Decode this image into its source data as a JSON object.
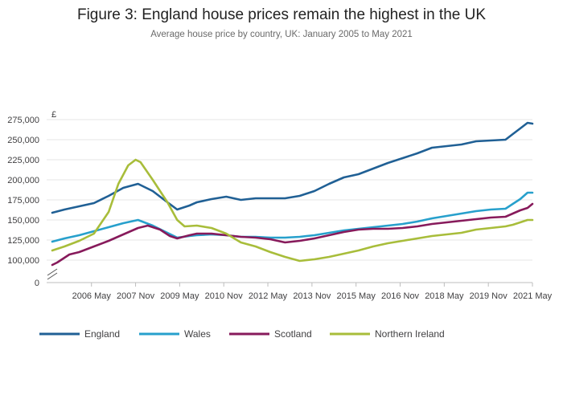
{
  "chart_data": {
    "type": "line",
    "title": "Figure 3: England house prices remain the highest in the UK",
    "subtitle": "Average house price by country, UK: January 2005 to May 2021",
    "y_unit": "£",
    "ylim": [
      0,
      275000
    ],
    "y_axis_break": [
      0,
      90000
    ],
    "y_ticks": [
      0,
      100000,
      125000,
      150000,
      175000,
      200000,
      225000,
      250000,
      275000
    ],
    "y_tick_labels": [
      "0",
      "100,000",
      "125,000",
      "150,000",
      "175,000",
      "200,000",
      "225,000",
      "250,000",
      "275,000"
    ],
    "x_range": [
      "2005-01",
      "2021-05"
    ],
    "x_ticks": [
      "2006-05",
      "2007-11",
      "2009-05",
      "2010-11",
      "2012-05",
      "2013-11",
      "2015-05",
      "2016-11",
      "2018-05",
      "2019-11",
      "2021-05"
    ],
    "x_tick_labels": [
      "2006 May",
      "2007 Nov",
      "2009 May",
      "2010 Nov",
      "2012 May",
      "2013 Nov",
      "2015 May",
      "2016 Nov",
      "2018 May",
      "2019 Nov",
      "2021 May"
    ],
    "grid": "horizontal",
    "legend_position": "bottom",
    "series": [
      {
        "name": "England",
        "color": "#206095",
        "points": [
          [
            "2005-01",
            159000
          ],
          [
            "2005-06",
            163000
          ],
          [
            "2005-12",
            167000
          ],
          [
            "2006-06",
            171000
          ],
          [
            "2006-12",
            180000
          ],
          [
            "2007-06",
            190000
          ],
          [
            "2007-12",
            195000
          ],
          [
            "2008-06",
            186000
          ],
          [
            "2008-12",
            172000
          ],
          [
            "2009-04",
            163000
          ],
          [
            "2009-09",
            168000
          ],
          [
            "2009-12",
            172000
          ],
          [
            "2010-06",
            176000
          ],
          [
            "2010-12",
            179000
          ],
          [
            "2011-06",
            175000
          ],
          [
            "2011-12",
            177000
          ],
          [
            "2012-06",
            177000
          ],
          [
            "2012-12",
            177000
          ],
          [
            "2013-06",
            180000
          ],
          [
            "2013-12",
            186000
          ],
          [
            "2014-06",
            195000
          ],
          [
            "2014-12",
            203000
          ],
          [
            "2015-06",
            207000
          ],
          [
            "2015-12",
            214000
          ],
          [
            "2016-06",
            221000
          ],
          [
            "2016-12",
            227000
          ],
          [
            "2017-06",
            233000
          ],
          [
            "2017-12",
            240000
          ],
          [
            "2018-06",
            242000
          ],
          [
            "2018-12",
            244000
          ],
          [
            "2019-06",
            248000
          ],
          [
            "2019-12",
            249000
          ],
          [
            "2020-06",
            250000
          ],
          [
            "2020-09",
            257000
          ],
          [
            "2020-12",
            264000
          ],
          [
            "2021-03",
            271000
          ],
          [
            "2021-05",
            270000
          ]
        ]
      },
      {
        "name": "Wales",
        "color": "#27a0cc",
        "points": [
          [
            "2005-01",
            123000
          ],
          [
            "2005-06",
            127000
          ],
          [
            "2005-12",
            131000
          ],
          [
            "2006-06",
            136000
          ],
          [
            "2006-12",
            141000
          ],
          [
            "2007-06",
            146000
          ],
          [
            "2007-12",
            150000
          ],
          [
            "2008-06",
            143000
          ],
          [
            "2008-12",
            134000
          ],
          [
            "2009-04",
            128000
          ],
          [
            "2009-09",
            130000
          ],
          [
            "2009-12",
            131000
          ],
          [
            "2010-06",
            132000
          ],
          [
            "2010-12",
            131000
          ],
          [
            "2011-06",
            129000
          ],
          [
            "2011-12",
            129000
          ],
          [
            "2012-06",
            128000
          ],
          [
            "2012-12",
            128000
          ],
          [
            "2013-06",
            129000
          ],
          [
            "2013-12",
            131000
          ],
          [
            "2014-06",
            134000
          ],
          [
            "2014-12",
            137000
          ],
          [
            "2015-06",
            139000
          ],
          [
            "2015-12",
            141000
          ],
          [
            "2016-06",
            143000
          ],
          [
            "2016-12",
            145000
          ],
          [
            "2017-06",
            148000
          ],
          [
            "2017-12",
            152000
          ],
          [
            "2018-06",
            155000
          ],
          [
            "2018-12",
            158000
          ],
          [
            "2019-06",
            161000
          ],
          [
            "2019-12",
            163000
          ],
          [
            "2020-06",
            164000
          ],
          [
            "2020-09",
            170000
          ],
          [
            "2020-12",
            176000
          ],
          [
            "2021-03",
            184000
          ],
          [
            "2021-05",
            184000
          ]
        ]
      },
      {
        "name": "Scotland",
        "color": "#871a5b",
        "points": [
          [
            "2005-01",
            94000
          ],
          [
            "2005-03",
            97000
          ],
          [
            "2005-08",
            107000
          ],
          [
            "2005-12",
            110000
          ],
          [
            "2006-06",
            117000
          ],
          [
            "2006-12",
            124000
          ],
          [
            "2007-06",
            132000
          ],
          [
            "2007-12",
            140000
          ],
          [
            "2008-04",
            143000
          ],
          [
            "2008-09",
            138000
          ],
          [
            "2009-01",
            130000
          ],
          [
            "2009-04",
            127000
          ],
          [
            "2009-09",
            131000
          ],
          [
            "2009-12",
            133000
          ],
          [
            "2010-06",
            133000
          ],
          [
            "2010-12",
            131000
          ],
          [
            "2011-06",
            129000
          ],
          [
            "2011-12",
            128000
          ],
          [
            "2012-06",
            126000
          ],
          [
            "2012-12",
            122000
          ],
          [
            "2013-06",
            124000
          ],
          [
            "2013-12",
            127000
          ],
          [
            "2014-06",
            131000
          ],
          [
            "2014-12",
            135000
          ],
          [
            "2015-06",
            138000
          ],
          [
            "2015-12",
            139000
          ],
          [
            "2016-06",
            139000
          ],
          [
            "2016-12",
            140000
          ],
          [
            "2017-06",
            142000
          ],
          [
            "2017-12",
            145000
          ],
          [
            "2018-06",
            147000
          ],
          [
            "2018-12",
            149000
          ],
          [
            "2019-06",
            151000
          ],
          [
            "2019-12",
            153000
          ],
          [
            "2020-06",
            154000
          ],
          [
            "2020-09",
            158000
          ],
          [
            "2020-12",
            162000
          ],
          [
            "2021-03",
            165000
          ],
          [
            "2021-05",
            170000
          ]
        ]
      },
      {
        "name": "Northern Ireland",
        "color": "#a8bd3a",
        "points": [
          [
            "2005-01",
            112000
          ],
          [
            "2005-06",
            117000
          ],
          [
            "2005-12",
            124000
          ],
          [
            "2006-06",
            133000
          ],
          [
            "2006-12",
            160000
          ],
          [
            "2007-04",
            195000
          ],
          [
            "2007-08",
            218000
          ],
          [
            "2007-11",
            225000
          ],
          [
            "2008-01",
            222000
          ],
          [
            "2008-06",
            200000
          ],
          [
            "2008-12",
            172000
          ],
          [
            "2009-04",
            150000
          ],
          [
            "2009-07",
            142000
          ],
          [
            "2009-12",
            143000
          ],
          [
            "2010-06",
            140000
          ],
          [
            "2010-12",
            133000
          ],
          [
            "2011-06",
            122000
          ],
          [
            "2011-12",
            117000
          ],
          [
            "2012-06",
            110000
          ],
          [
            "2012-12",
            104000
          ],
          [
            "2013-06",
            99000
          ],
          [
            "2013-12",
            101000
          ],
          [
            "2014-06",
            104000
          ],
          [
            "2014-12",
            108000
          ],
          [
            "2015-06",
            112000
          ],
          [
            "2015-12",
            117000
          ],
          [
            "2016-06",
            121000
          ],
          [
            "2016-12",
            124000
          ],
          [
            "2017-06",
            127000
          ],
          [
            "2017-12",
            130000
          ],
          [
            "2018-06",
            132000
          ],
          [
            "2018-12",
            134000
          ],
          [
            "2019-06",
            138000
          ],
          [
            "2019-12",
            140000
          ],
          [
            "2020-06",
            142000
          ],
          [
            "2020-09",
            144000
          ],
          [
            "2020-12",
            147000
          ],
          [
            "2021-03",
            150000
          ],
          [
            "2021-05",
            150000
          ]
        ]
      }
    ]
  }
}
